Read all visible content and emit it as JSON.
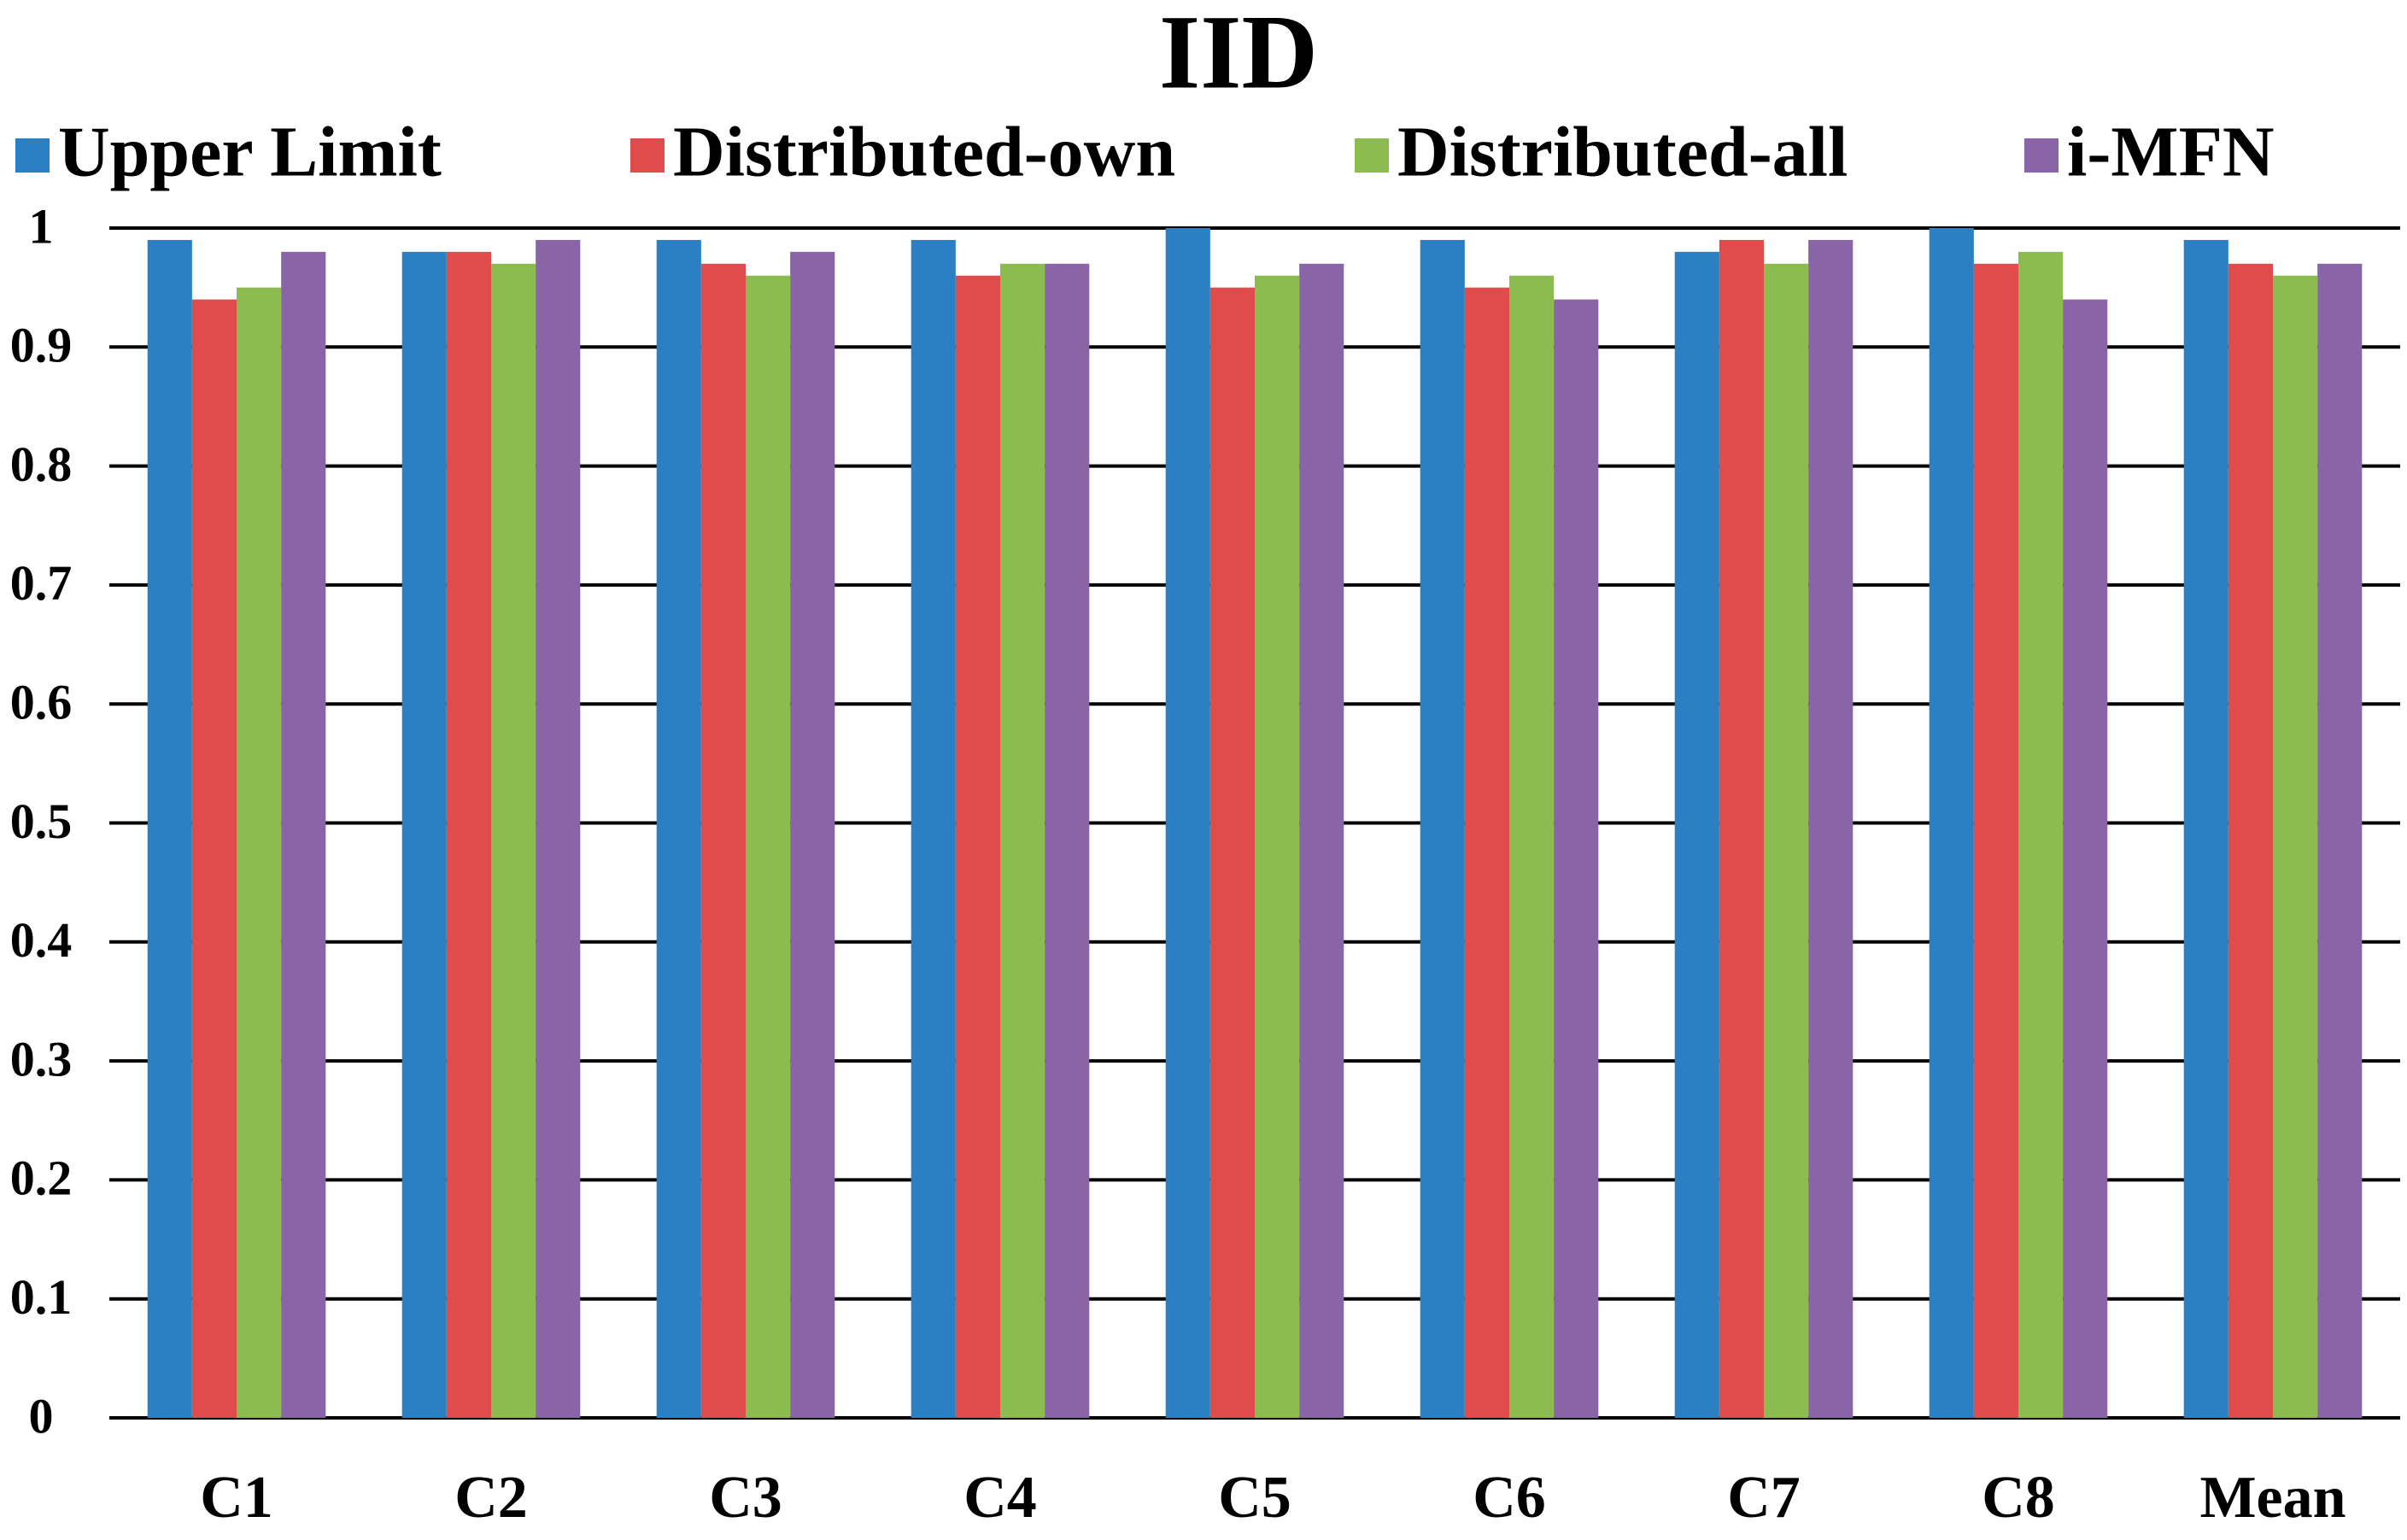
{
  "chart_data": {
    "type": "bar",
    "title": "IID",
    "categories": [
      "C1",
      "C2",
      "C3",
      "C4",
      "C5",
      "C6",
      "C7",
      "C8",
      "Mean"
    ],
    "series": [
      {
        "name": "Upper Limit",
        "color": "#2a80c2",
        "values": [
          0.99,
          0.98,
          0.99,
          0.99,
          1.0,
          0.99,
          0.98,
          1.0,
          0.99
        ]
      },
      {
        "name": "Distributed-own",
        "color": "#e04c4c",
        "values": [
          0.94,
          0.98,
          0.97,
          0.96,
          0.95,
          0.95,
          0.99,
          0.97,
          0.97
        ]
      },
      {
        "name": "Distributed-all",
        "color": "#8cbb4f",
        "values": [
          0.95,
          0.97,
          0.96,
          0.97,
          0.96,
          0.96,
          0.97,
          0.98,
          0.96
        ]
      },
      {
        "name": "i-MFN",
        "color": "#8964a7",
        "values": [
          0.98,
          0.99,
          0.98,
          0.97,
          0.97,
          0.94,
          0.99,
          0.94,
          0.97
        ]
      }
    ],
    "ylim": [
      0,
      1
    ],
    "yticks": [
      0,
      0.1,
      0.2,
      0.3,
      0.4,
      0.5,
      0.6,
      0.7,
      0.8,
      0.9,
      1
    ],
    "grid": true,
    "legend": "top"
  }
}
